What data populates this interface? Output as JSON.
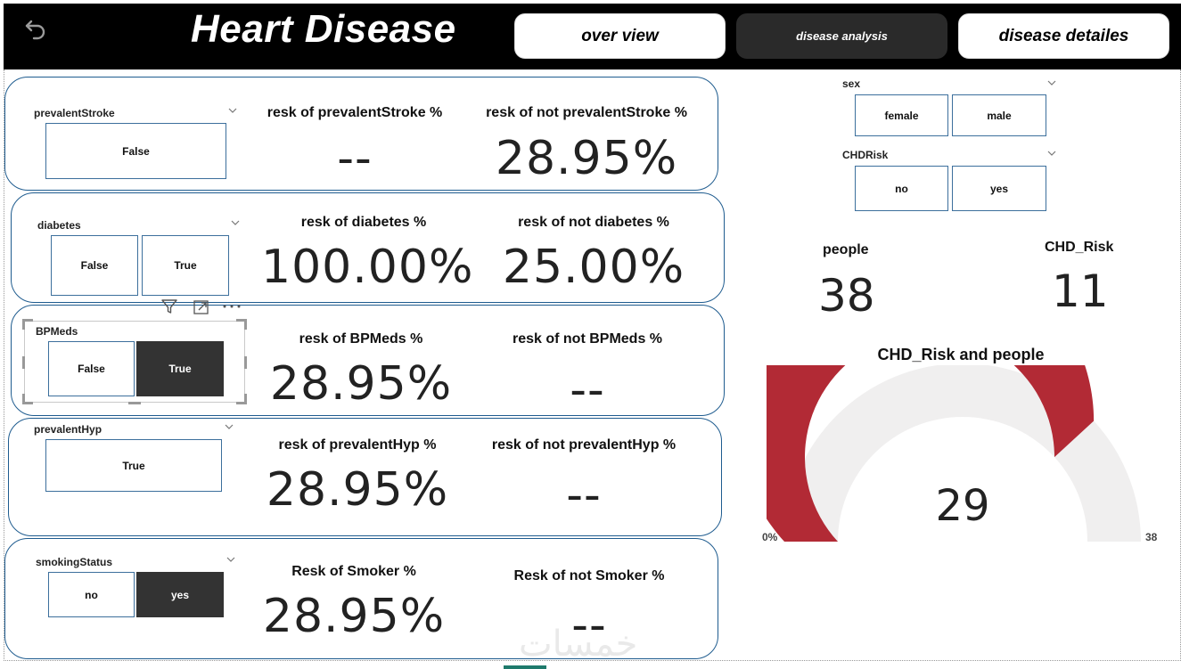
{
  "header": {
    "title": "Heart Disease",
    "tabs": [
      {
        "label": "over view"
      },
      {
        "label": "disease analysis"
      },
      {
        "label": "disease detailes"
      }
    ]
  },
  "rows": [
    {
      "slicer_title": "prevalentStroke",
      "options": [
        "False"
      ],
      "kpi1_label": "resk of prevalentStroke %",
      "kpi1_value": "--",
      "kpi2_label": "resk of not prevalentStroke %",
      "kpi2_value": "28.95%"
    },
    {
      "slicer_title": "diabetes",
      "options": [
        "False",
        "True"
      ],
      "kpi1_label": "resk of diabetes %",
      "kpi1_value": "100.00%",
      "kpi2_label": "resk of not diabetes %",
      "kpi2_value": "25.00%"
    },
    {
      "slicer_title": "BPMeds",
      "options": [
        "False",
        "True"
      ],
      "selected": "True",
      "kpi1_label": "resk of BPMeds %",
      "kpi1_value": "28.95%",
      "kpi2_label": "resk of not BPMeds %",
      "kpi2_value": "--"
    },
    {
      "slicer_title": "prevalentHyp",
      "options": [
        "True"
      ],
      "kpi1_label": "resk of prevalentHyp %",
      "kpi1_value": "28.95%",
      "kpi2_label": "resk of not prevalentHyp %",
      "kpi2_value": "--"
    },
    {
      "slicer_title": "smokingStatus",
      "options": [
        "no",
        "yes"
      ],
      "selected": "yes",
      "kpi1_label": "Resk of Smoker %",
      "kpi1_value": "28.95%",
      "kpi2_label": "Resk of not Smoker %",
      "kpi2_value": "--"
    }
  ],
  "filters": {
    "sex": {
      "title": "sex",
      "options": [
        "female",
        "male"
      ]
    },
    "chdrisk": {
      "title": "CHDRisk",
      "options": [
        "no",
        "yes"
      ]
    }
  },
  "cards": {
    "people": {
      "label": "people",
      "value": "38"
    },
    "chd_risk": {
      "label": "CHD_Risk",
      "value": "11"
    }
  },
  "gauge": {
    "title": "CHD_Risk and people",
    "value": 29,
    "value_label": "29",
    "min": 0,
    "max": 38,
    "min_label": "0%",
    "max_label": "38",
    "fill_color": "#b22a35",
    "track_color": "#f0efef"
  },
  "watermark": "خمسات"
}
